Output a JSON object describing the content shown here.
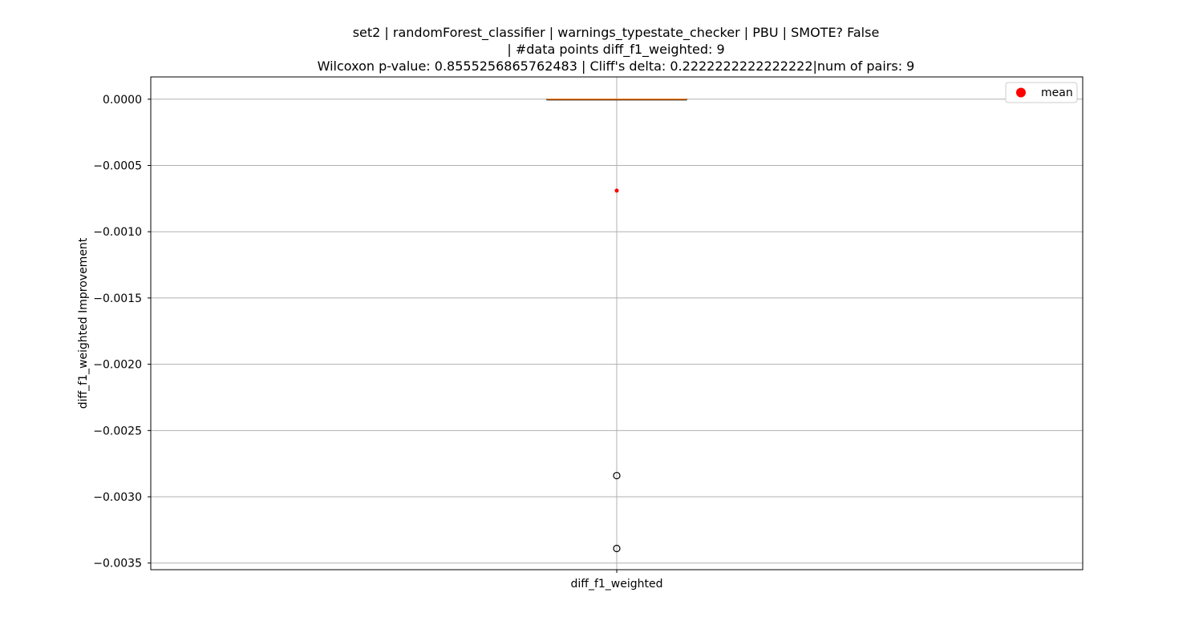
{
  "chart_data": {
    "type": "box",
    "title_lines": [
      "set2 | randomForest_classifier | warnings_typestate_checker | PBU | SMOTE? False",
      "| #data points diff_f1_weighted: 9",
      "Wilcoxon p-value: 0.8555256865762483 | Cliff's delta: 0.2222222222222222|num of pairs: 9"
    ],
    "xlabel": "",
    "ylabel": "diff_f1_weighted Improvement",
    "categories": [
      "diff_f1_weighted"
    ],
    "ylim": [
      -0.00355,
      0.000168
    ],
    "y_ticks": [
      0.0,
      -0.0005,
      -0.001,
      -0.0015,
      -0.002,
      -0.0025,
      -0.003,
      -0.0035
    ],
    "y_tick_labels": [
      "0.0000",
      "−0.0005",
      "−0.0010",
      "−0.0015",
      "−0.0020",
      "−0.0025",
      "−0.0030",
      "−0.0035"
    ],
    "grid": true,
    "box": {
      "q1": 0.0,
      "median": 0.0,
      "q3": 0.0,
      "whisker_low": 0.0,
      "whisker_high": 0.0,
      "outliers": [
        -0.00284,
        -0.00339
      ],
      "mean": -0.00069
    },
    "legend": {
      "placement": "top-right",
      "entries": [
        {
          "label": "mean",
          "color": "#ff0000",
          "marker": "circle"
        }
      ]
    },
    "colors": {
      "median": "#ff7f0e",
      "mean": "#ff0000",
      "grid": "#b0b0b0",
      "box": "#000000"
    }
  }
}
